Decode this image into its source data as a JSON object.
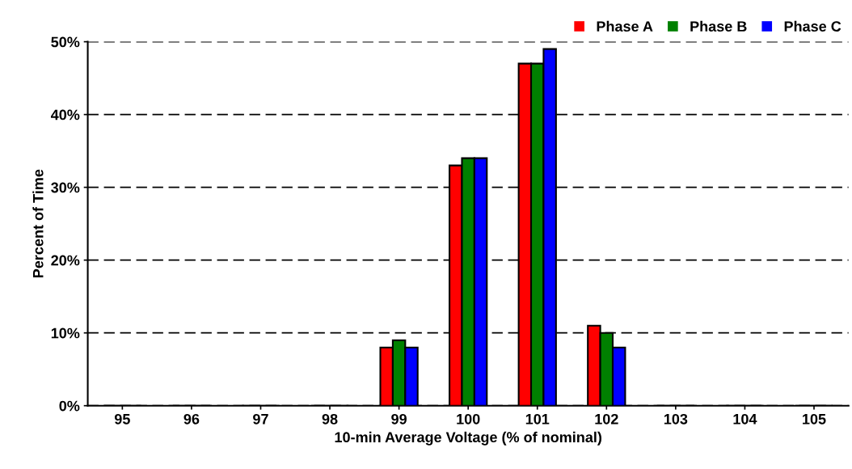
{
  "chart_data": {
    "type": "bar",
    "xlabel": "10-min Average Voltage (% of nominal)",
    "ylabel": "Percent of Time",
    "categories": [
      "95",
      "96",
      "97",
      "98",
      "99",
      "100",
      "101",
      "102",
      "103",
      "104",
      "105"
    ],
    "series": [
      {
        "name": "Phase A",
        "color": "#ff0000",
        "values": [
          0,
          0,
          0,
          0,
          8,
          33,
          47,
          11,
          0,
          0,
          0
        ]
      },
      {
        "name": "Phase B",
        "color": "#008000",
        "values": [
          0,
          0,
          0,
          0,
          9,
          34,
          47,
          10,
          0,
          0,
          0
        ]
      },
      {
        "name": "Phase C",
        "color": "#0000ff",
        "values": [
          0,
          0,
          0,
          0,
          8,
          34,
          49,
          8,
          0,
          0,
          0
        ]
      }
    ],
    "ylim": [
      0,
      50
    ],
    "yticks": [
      {
        "value": 0,
        "label": "0%"
      },
      {
        "value": 10,
        "label": "10%"
      },
      {
        "value": 20,
        "label": "20%"
      },
      {
        "value": 30,
        "label": "30%"
      },
      {
        "value": 40,
        "label": "40%"
      },
      {
        "value": 50,
        "label": "50%"
      }
    ],
    "grid": "y",
    "legend": "top right"
  }
}
